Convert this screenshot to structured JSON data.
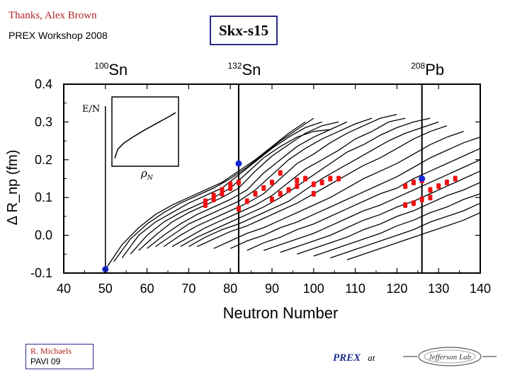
{
  "header": {
    "credit": "Thanks, Alex Brown",
    "workshop": "PREX Workshop 2008",
    "model": "Skx-s15"
  },
  "footer": {
    "name": "R. Michaels",
    "event": "PAVI 09",
    "prex": "PREX",
    "at": "at",
    "logo_text": "Jefferson Lab"
  },
  "chart_data": {
    "type": "line",
    "title": "",
    "xlabel": "Neutron Number",
    "ylabel": "Δ R_np (fm)",
    "xlim": [
      40,
      140
    ],
    "ylim": [
      -0.1,
      0.4
    ],
    "xticks": [
      40,
      50,
      60,
      70,
      80,
      90,
      100,
      110,
      120,
      130,
      140
    ],
    "yticks": [
      -0.1,
      0.0,
      0.1,
      0.2,
      0.3,
      0.4
    ],
    "ytick_labels": [
      "-0.1",
      "0.0",
      "0.1",
      "0.2",
      "0.3",
      "0.4"
    ],
    "top_labels": [
      {
        "mass": "100",
        "symbol": "Sn",
        "N": 50
      },
      {
        "mass": "132",
        "symbol": "Sn",
        "N": 82
      },
      {
        "mass": "208",
        "symbol": "Pb",
        "N": 126
      }
    ],
    "vlines": [
      50,
      82,
      126
    ],
    "blue_points": [
      {
        "N": 50,
        "dR": -0.09
      },
      {
        "N": 82,
        "dR": 0.19
      },
      {
        "N": 126,
        "dR": 0.15
      }
    ],
    "red_points": [
      {
        "N": 74,
        "dR": 0.08
      },
      {
        "N": 74,
        "dR": 0.09
      },
      {
        "N": 76,
        "dR": 0.095
      },
      {
        "N": 76,
        "dR": 0.105
      },
      {
        "N": 78,
        "dR": 0.11
      },
      {
        "N": 78,
        "dR": 0.12
      },
      {
        "N": 80,
        "dR": 0.125
      },
      {
        "N": 80,
        "dR": 0.135
      },
      {
        "N": 82,
        "dR": 0.07
      },
      {
        "N": 82,
        "dR": 0.14
      },
      {
        "N": 84,
        "dR": 0.09
      },
      {
        "N": 86,
        "dR": 0.11
      },
      {
        "N": 88,
        "dR": 0.125
      },
      {
        "N": 90,
        "dR": 0.095
      },
      {
        "N": 90,
        "dR": 0.14
      },
      {
        "N": 92,
        "dR": 0.11
      },
      {
        "N": 92,
        "dR": 0.165
      },
      {
        "N": 94,
        "dR": 0.12
      },
      {
        "N": 96,
        "dR": 0.13
      },
      {
        "N": 96,
        "dR": 0.145
      },
      {
        "N": 98,
        "dR": 0.15
      },
      {
        "N": 100,
        "dR": 0.11
      },
      {
        "N": 100,
        "dR": 0.135
      },
      {
        "N": 102,
        "dR": 0.14
      },
      {
        "N": 104,
        "dR": 0.15
      },
      {
        "N": 106,
        "dR": 0.15
      },
      {
        "N": 122,
        "dR": 0.08
      },
      {
        "N": 122,
        "dR": 0.13
      },
      {
        "N": 124,
        "dR": 0.085
      },
      {
        "N": 124,
        "dR": 0.14
      },
      {
        "N": 126,
        "dR": 0.095
      },
      {
        "N": 126,
        "dR": 0.145
      },
      {
        "N": 128,
        "dR": 0.1
      },
      {
        "N": 128,
        "dR": 0.12
      },
      {
        "N": 130,
        "dR": 0.13
      },
      {
        "N": 132,
        "dR": 0.14
      },
      {
        "N": 134,
        "dR": 0.15
      }
    ],
    "curves": [
      [
        [
          50,
          -0.09
        ],
        [
          54,
          -0.025
        ],
        [
          58,
          0.02
        ],
        [
          62,
          0.055
        ],
        [
          66,
          0.08
        ],
        [
          70,
          0.1
        ],
        [
          74,
          0.12
        ],
        [
          78,
          0.14
        ],
        [
          82,
          0.17
        ],
        [
          86,
          0.2
        ],
        [
          90,
          0.235
        ],
        [
          94,
          0.27
        ],
        [
          98,
          0.3
        ]
      ],
      [
        [
          52,
          -0.07
        ],
        [
          56,
          -0.01
        ],
        [
          60,
          0.03
        ],
        [
          64,
          0.06
        ],
        [
          68,
          0.085
        ],
        [
          72,
          0.105
        ],
        [
          76,
          0.125
        ],
        [
          80,
          0.15
        ],
        [
          84,
          0.18
        ],
        [
          88,
          0.215
        ],
        [
          92,
          0.25
        ],
        [
          96,
          0.28
        ],
        [
          100,
          0.31
        ]
      ],
      [
        [
          54,
          -0.06
        ],
        [
          58,
          0.0
        ],
        [
          62,
          0.035
        ],
        [
          66,
          0.06
        ],
        [
          70,
          0.085
        ],
        [
          74,
          0.105
        ],
        [
          78,
          0.125
        ],
        [
          82,
          0.16
        ],
        [
          86,
          0.195
        ],
        [
          90,
          0.23
        ],
        [
          94,
          0.26
        ],
        [
          98,
          0.285
        ],
        [
          102,
          0.3
        ]
      ],
      [
        [
          56,
          -0.05
        ],
        [
          60,
          0.0
        ],
        [
          64,
          0.035
        ],
        [
          68,
          0.06
        ],
        [
          72,
          0.08
        ],
        [
          76,
          0.1
        ],
        [
          80,
          0.125
        ],
        [
          84,
          0.165
        ],
        [
          88,
          0.205
        ],
        [
          92,
          0.235
        ],
        [
          96,
          0.26
        ],
        [
          100,
          0.275
        ],
        [
          104,
          0.28
        ]
      ],
      [
        [
          58,
          -0.04
        ],
        [
          62,
          0.0
        ],
        [
          66,
          0.035
        ],
        [
          70,
          0.06
        ],
        [
          74,
          0.08
        ],
        [
          78,
          0.1
        ],
        [
          82,
          0.125
        ],
        [
          86,
          0.17
        ],
        [
          90,
          0.21
        ],
        [
          94,
          0.24
        ],
        [
          98,
          0.27
        ],
        [
          102,
          0.29
        ],
        [
          106,
          0.3
        ]
      ],
      [
        [
          60,
          -0.035
        ],
        [
          64,
          0.0
        ],
        [
          68,
          0.03
        ],
        [
          72,
          0.055
        ],
        [
          76,
          0.075
        ],
        [
          80,
          0.095
        ],
        [
          84,
          0.12
        ],
        [
          88,
          0.165
        ],
        [
          92,
          0.2
        ],
        [
          96,
          0.235
        ],
        [
          100,
          0.26
        ],
        [
          104,
          0.28
        ],
        [
          108,
          0.3
        ]
      ],
      [
        [
          62,
          -0.03
        ],
        [
          66,
          0.0
        ],
        [
          70,
          0.03
        ],
        [
          74,
          0.05
        ],
        [
          78,
          0.07
        ],
        [
          82,
          0.09
        ],
        [
          86,
          0.12
        ],
        [
          90,
          0.16
        ],
        [
          94,
          0.2
        ],
        [
          98,
          0.23
        ],
        [
          102,
          0.255
        ],
        [
          106,
          0.275
        ],
        [
          110,
          0.295
        ],
        [
          114,
          0.31
        ]
      ],
      [
        [
          64,
          -0.03
        ],
        [
          68,
          0.0
        ],
        [
          72,
          0.025
        ],
        [
          76,
          0.045
        ],
        [
          80,
          0.065
        ],
        [
          84,
          0.085
        ],
        [
          88,
          0.11
        ],
        [
          92,
          0.15
        ],
        [
          96,
          0.19
        ],
        [
          100,
          0.215
        ],
        [
          104,
          0.245
        ],
        [
          108,
          0.27
        ],
        [
          112,
          0.29
        ],
        [
          116,
          0.31
        ],
        [
          120,
          0.32
        ]
      ],
      [
        [
          66,
          -0.03
        ],
        [
          70,
          -0.005
        ],
        [
          74,
          0.02
        ],
        [
          78,
          0.04
        ],
        [
          82,
          0.06
        ],
        [
          86,
          0.08
        ],
        [
          90,
          0.105
        ],
        [
          94,
          0.14
        ],
        [
          98,
          0.175
        ],
        [
          102,
          0.2
        ],
        [
          106,
          0.225
        ],
        [
          110,
          0.255
        ],
        [
          114,
          0.275
        ],
        [
          118,
          0.3
        ],
        [
          122,
          0.31
        ]
      ],
      [
        [
          68,
          -0.03
        ],
        [
          72,
          -0.005
        ],
        [
          76,
          0.015
        ],
        [
          80,
          0.035
        ],
        [
          84,
          0.055
        ],
        [
          88,
          0.075
        ],
        [
          92,
          0.1
        ],
        [
          96,
          0.13
        ],
        [
          100,
          0.16
        ],
        [
          104,
          0.19
        ],
        [
          108,
          0.22
        ],
        [
          112,
          0.24
        ],
        [
          116,
          0.265
        ],
        [
          120,
          0.285
        ],
        [
          124,
          0.3
        ],
        [
          128,
          0.31
        ]
      ],
      [
        [
          70,
          -0.03
        ],
        [
          74,
          -0.005
        ],
        [
          78,
          0.015
        ],
        [
          82,
          0.03
        ],
        [
          86,
          0.05
        ],
        [
          90,
          0.07
        ],
        [
          94,
          0.09
        ],
        [
          98,
          0.12
        ],
        [
          102,
          0.15
        ],
        [
          106,
          0.175
        ],
        [
          110,
          0.2
        ],
        [
          114,
          0.225
        ],
        [
          118,
          0.25
        ],
        [
          122,
          0.27
        ],
        [
          126,
          0.285
        ],
        [
          130,
          0.3
        ]
      ],
      [
        [
          72,
          -0.03
        ],
        [
          76,
          -0.01
        ],
        [
          80,
          0.01
        ],
        [
          84,
          0.025
        ],
        [
          88,
          0.045
        ],
        [
          92,
          0.065
        ],
        [
          96,
          0.085
        ],
        [
          100,
          0.11
        ],
        [
          104,
          0.135
        ],
        [
          108,
          0.16
        ],
        [
          112,
          0.185
        ],
        [
          116,
          0.205
        ],
        [
          120,
          0.23
        ],
        [
          124,
          0.255
        ],
        [
          128,
          0.275
        ],
        [
          132,
          0.29
        ]
      ],
      [
        [
          76,
          -0.035
        ],
        [
          80,
          -0.015
        ],
        [
          84,
          0.005
        ],
        [
          88,
          0.02
        ],
        [
          92,
          0.04
        ],
        [
          96,
          0.06
        ],
        [
          100,
          0.08
        ],
        [
          104,
          0.1
        ],
        [
          108,
          0.125
        ],
        [
          112,
          0.15
        ],
        [
          116,
          0.17
        ],
        [
          120,
          0.19
        ],
        [
          124,
          0.215
        ],
        [
          128,
          0.24
        ],
        [
          132,
          0.26
        ],
        [
          136,
          0.275
        ]
      ],
      [
        [
          80,
          -0.035
        ],
        [
          84,
          -0.015
        ],
        [
          88,
          0.0
        ],
        [
          92,
          0.02
        ],
        [
          96,
          0.035
        ],
        [
          100,
          0.055
        ],
        [
          104,
          0.075
        ],
        [
          108,
          0.095
        ],
        [
          112,
          0.115
        ],
        [
          116,
          0.135
        ],
        [
          120,
          0.155
        ],
        [
          124,
          0.18
        ],
        [
          128,
          0.205
        ],
        [
          132,
          0.225
        ],
        [
          136,
          0.245
        ],
        [
          140,
          0.26
        ]
      ],
      [
        [
          84,
          -0.04
        ],
        [
          88,
          -0.02
        ],
        [
          92,
          -0.005
        ],
        [
          96,
          0.015
        ],
        [
          100,
          0.03
        ],
        [
          104,
          0.05
        ],
        [
          108,
          0.07
        ],
        [
          112,
          0.09
        ],
        [
          116,
          0.11
        ],
        [
          120,
          0.125
        ],
        [
          124,
          0.15
        ],
        [
          128,
          0.17
        ],
        [
          132,
          0.19
        ],
        [
          136,
          0.21
        ],
        [
          140,
          0.23
        ]
      ],
      [
        [
          88,
          -0.04
        ],
        [
          92,
          -0.025
        ],
        [
          96,
          -0.01
        ],
        [
          100,
          0.005
        ],
        [
          104,
          0.025
        ],
        [
          108,
          0.045
        ],
        [
          112,
          0.065
        ],
        [
          116,
          0.08
        ],
        [
          120,
          0.1
        ],
        [
          124,
          0.12
        ],
        [
          128,
          0.14
        ],
        [
          132,
          0.16
        ],
        [
          136,
          0.18
        ],
        [
          140,
          0.2
        ]
      ],
      [
        [
          92,
          -0.045
        ],
        [
          96,
          -0.03
        ],
        [
          100,
          -0.015
        ],
        [
          104,
          0.0
        ],
        [
          108,
          0.02
        ],
        [
          112,
          0.04
        ],
        [
          116,
          0.055
        ],
        [
          120,
          0.075
        ],
        [
          124,
          0.09
        ],
        [
          128,
          0.11
        ],
        [
          132,
          0.13
        ],
        [
          136,
          0.15
        ],
        [
          140,
          0.17
        ]
      ],
      [
        [
          96,
          -0.05
        ],
        [
          100,
          -0.035
        ],
        [
          104,
          -0.02
        ],
        [
          108,
          -0.005
        ],
        [
          112,
          0.015
        ],
        [
          116,
          0.03
        ],
        [
          120,
          0.05
        ],
        [
          124,
          0.065
        ],
        [
          128,
          0.085
        ],
        [
          132,
          0.105
        ],
        [
          136,
          0.12
        ],
        [
          140,
          0.14
        ]
      ],
      [
        [
          100,
          -0.055
        ],
        [
          104,
          -0.04
        ],
        [
          108,
          -0.025
        ],
        [
          112,
          -0.01
        ],
        [
          116,
          0.005
        ],
        [
          120,
          0.025
        ],
        [
          124,
          0.04
        ],
        [
          128,
          0.06
        ],
        [
          132,
          0.075
        ],
        [
          136,
          0.095
        ],
        [
          140,
          0.11
        ]
      ],
      [
        [
          104,
          -0.06
        ],
        [
          108,
          -0.045
        ],
        [
          112,
          -0.03
        ],
        [
          116,
          -0.015
        ],
        [
          120,
          0.0
        ],
        [
          124,
          0.015
        ],
        [
          128,
          0.035
        ],
        [
          132,
          0.05
        ],
        [
          136,
          0.065
        ],
        [
          140,
          0.085
        ]
      ],
      [
        [
          108,
          -0.065
        ],
        [
          112,
          -0.05
        ],
        [
          116,
          -0.035
        ],
        [
          120,
          -0.02
        ],
        [
          124,
          -0.005
        ],
        [
          128,
          0.01
        ],
        [
          132,
          0.025
        ],
        [
          136,
          0.04
        ],
        [
          140,
          0.06
        ]
      ]
    ],
    "inset": {
      "xlabel": "ρ",
      "xlabel_sub": "N",
      "ylabel": "E/N",
      "curve": [
        [
          0.0,
          0.05
        ],
        [
          0.05,
          0.2
        ],
        [
          0.15,
          0.3
        ],
        [
          0.3,
          0.4
        ],
        [
          0.5,
          0.52
        ],
        [
          0.7,
          0.63
        ],
        [
          0.9,
          0.74
        ],
        [
          1.0,
          0.8
        ]
      ]
    }
  }
}
